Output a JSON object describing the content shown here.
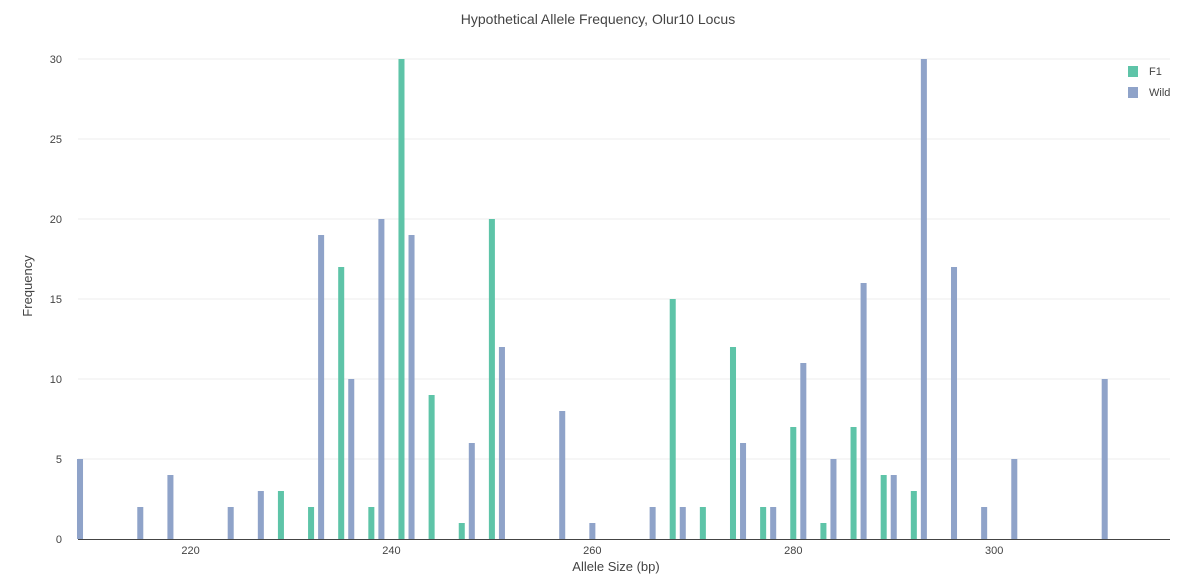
{
  "chart_data": {
    "type": "bar",
    "title": "Hypothetical Allele Frequency, Olur10 Locus",
    "xlabel": "Allele Size (bp)",
    "ylabel": "Frequency",
    "xlim": [
      208.8,
      317.5
    ],
    "ylim": [
      0,
      30
    ],
    "xticks": [
      220,
      240,
      260,
      280,
      300
    ],
    "yticks": [
      0,
      5,
      10,
      15,
      20,
      25,
      30
    ],
    "grid": true,
    "legend_position": "top-right",
    "colors": {
      "F1": "#5ec4a8",
      "Wild": "#8fa3c9"
    },
    "series": [
      {
        "name": "F1",
        "points": [
          {
            "x": 229,
            "y": 3
          },
          {
            "x": 232,
            "y": 2
          },
          {
            "x": 235,
            "y": 17
          },
          {
            "x": 238,
            "y": 2
          },
          {
            "x": 241,
            "y": 30
          },
          {
            "x": 244,
            "y": 9
          },
          {
            "x": 247,
            "y": 1
          },
          {
            "x": 250,
            "y": 20
          },
          {
            "x": 268,
            "y": 15
          },
          {
            "x": 271,
            "y": 2
          },
          {
            "x": 274,
            "y": 12
          },
          {
            "x": 277,
            "y": 2
          },
          {
            "x": 280,
            "y": 7
          },
          {
            "x": 283,
            "y": 1
          },
          {
            "x": 286,
            "y": 7
          },
          {
            "x": 289,
            "y": 4
          },
          {
            "x": 292,
            "y": 3
          }
        ]
      },
      {
        "name": "Wild",
        "points": [
          {
            "x": 209,
            "y": 5
          },
          {
            "x": 215,
            "y": 2
          },
          {
            "x": 218,
            "y": 4
          },
          {
            "x": 224,
            "y": 2
          },
          {
            "x": 227,
            "y": 3
          },
          {
            "x": 233,
            "y": 19
          },
          {
            "x": 236,
            "y": 10
          },
          {
            "x": 239,
            "y": 20
          },
          {
            "x": 242,
            "y": 19
          },
          {
            "x": 248,
            "y": 6
          },
          {
            "x": 251,
            "y": 12
          },
          {
            "x": 257,
            "y": 8
          },
          {
            "x": 260,
            "y": 1
          },
          {
            "x": 266,
            "y": 2
          },
          {
            "x": 269,
            "y": 2
          },
          {
            "x": 275,
            "y": 6
          },
          {
            "x": 278,
            "y": 2
          },
          {
            "x": 281,
            "y": 11
          },
          {
            "x": 284,
            "y": 5
          },
          {
            "x": 287,
            "y": 16
          },
          {
            "x": 290,
            "y": 4
          },
          {
            "x": 293,
            "y": 30
          },
          {
            "x": 296,
            "y": 17
          },
          {
            "x": 299,
            "y": 2
          },
          {
            "x": 302,
            "y": 5
          },
          {
            "x": 311,
            "y": 10
          }
        ]
      }
    ]
  }
}
